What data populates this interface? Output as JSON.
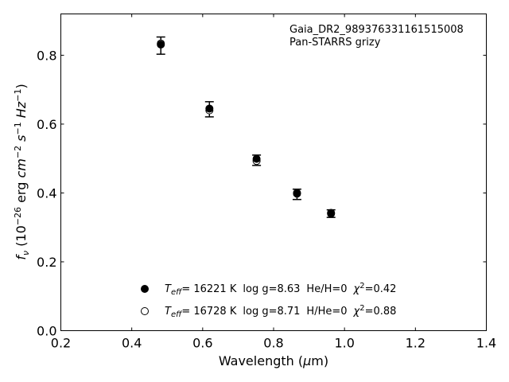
{
  "chart_data": {
    "type": "scatter",
    "xlabel_prefix": "Wavelength (",
    "xlabel_symbol": "μ",
    "xlabel_suffix": "m)",
    "ylabel_f": "f",
    "ylabel_nu": "ν",
    "ylabel_mid1": " (10",
    "ylabel_exp26": "−26",
    "ylabel_mid2": " erg ",
    "ylabel_cm": "cm",
    "ylabel_exp2": "−2",
    "ylabel_s": " s",
    "ylabel_exp1a": "−1",
    "ylabel_hz": " Hz",
    "ylabel_exp1b": "−1",
    "ylabel_close": ")",
    "xlim": [
      0.2,
      1.4
    ],
    "ylim": [
      0.0,
      0.92
    ],
    "xticks": [
      0.2,
      0.4,
      0.6,
      0.8,
      1.0,
      1.2,
      1.4
    ],
    "xtick_labels": [
      "0.2",
      "0.4",
      "0.6",
      "0.8",
      "1.0",
      "1.2",
      "1.4"
    ],
    "yticks": [
      0.0,
      0.2,
      0.4,
      0.6,
      0.8
    ],
    "ytick_labels": [
      "0.0",
      "0.2",
      "0.4",
      "0.6",
      "0.8"
    ],
    "annotation_lines": [
      "Gaia_DR2_989376331161515008",
      "Pan-STARRS grizy"
    ],
    "annotation_placement": "top-right",
    "legend_placement": "lower-left",
    "grid": false,
    "observed": {
      "x": [
        0.482,
        0.619,
        0.752,
        0.866,
        0.962
      ],
      "y": [
        0.828,
        0.643,
        0.495,
        0.396,
        0.34
      ],
      "yerr": [
        0.025,
        0.022,
        0.015,
        0.015,
        0.011
      ]
    },
    "series": [
      {
        "marker": "filled",
        "legend": {
          "t": "T",
          "eff": "eff",
          "teff_value": "= 16221 K",
          "logg": "log g=8.63",
          "comp": "He/H=0",
          "chi": "χ",
          "chi_exp": "2",
          "chi_value": "=0.42"
        },
        "x": [
          0.482,
          0.619,
          0.752,
          0.866,
          0.962
        ],
        "y": [
          0.831,
          0.645,
          0.499,
          0.4,
          0.34
        ]
      },
      {
        "marker": "open",
        "legend": {
          "t": "T",
          "eff": "eff",
          "teff_value": "= 16728 K",
          "logg": "log g=8.71",
          "comp": "H/He=0",
          "chi": "χ",
          "chi_exp": "2",
          "chi_value": "=0.88"
        },
        "x": [
          0.482,
          0.619,
          0.752,
          0.866,
          0.962
        ],
        "y": [
          0.834,
          0.64,
          0.493,
          0.398,
          0.342
        ]
      }
    ]
  }
}
